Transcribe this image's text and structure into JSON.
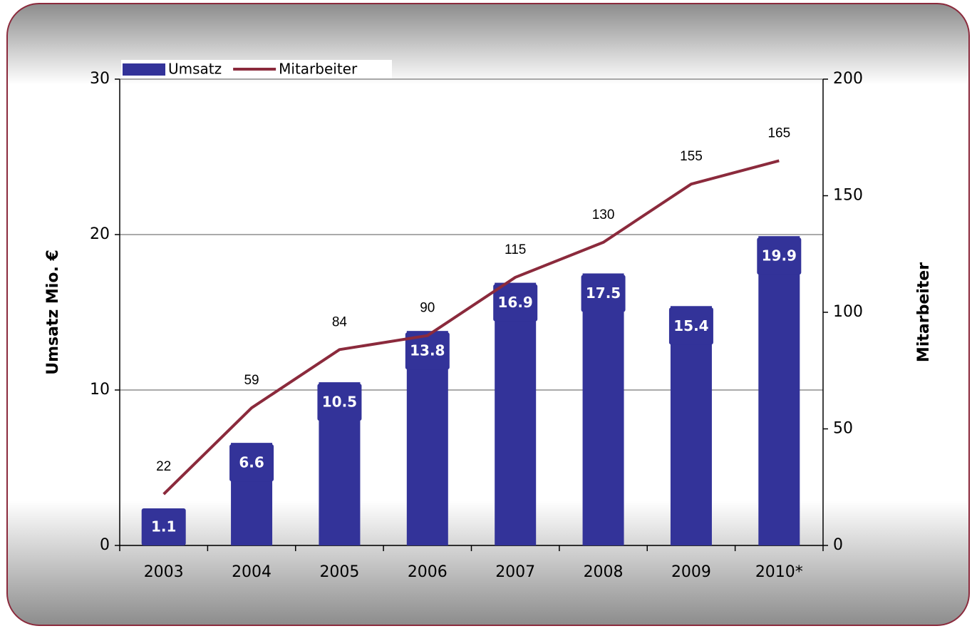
{
  "chart_data": {
    "type": "bar_line",
    "categories": [
      "2003",
      "2004",
      "2005",
      "2006",
      "2007",
      "2008",
      "2009",
      "2010*"
    ],
    "series": [
      {
        "name": "Umsatz",
        "type": "bar",
        "color": "#333399",
        "values": [
          1.1,
          6.6,
          10.5,
          13.8,
          16.9,
          17.5,
          15.4,
          19.9
        ]
      },
      {
        "name": "Mitarbeiter",
        "type": "line",
        "color": "#8b2a3c",
        "axis": "y2",
        "values": [
          22,
          59,
          84,
          90,
          115,
          130,
          155,
          165
        ]
      }
    ],
    "y_label": "Umsatz Mio. €",
    "y2_label": "Mitarbeiter",
    "ylim": [
      0,
      30
    ],
    "yticks": [
      0,
      10,
      20,
      30
    ],
    "y2lim": [
      0,
      200
    ],
    "y2ticks": [
      0,
      50,
      100,
      150,
      200
    ],
    "grid": true,
    "legend": "top-left"
  }
}
